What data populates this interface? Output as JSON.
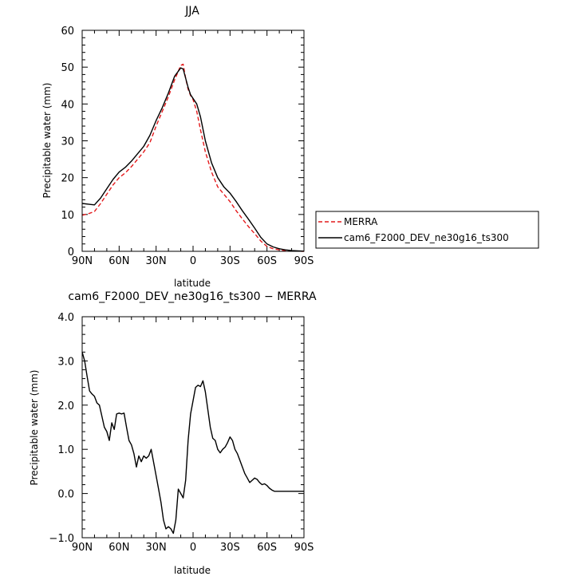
{
  "chart_data": [
    {
      "type": "line",
      "title": "JJA",
      "xlabel": "latitude",
      "ylabel": "Precipitable water (mm)",
      "xlim": [
        90,
        -90
      ],
      "ylim": [
        0,
        60
      ],
      "x_ticks": [
        90,
        60,
        30,
        0,
        -30,
        -60,
        -90
      ],
      "x_tick_labels": [
        "90N",
        "60N",
        "30N",
        "0",
        "30S",
        "60S",
        "90S"
      ],
      "y_ticks": [
        0,
        10,
        20,
        30,
        40,
        50,
        60
      ],
      "y_tick_labels": [
        "0",
        "10",
        "20",
        "30",
        "40",
        "50",
        "60"
      ],
      "grid": false,
      "legend_position": "right",
      "series": [
        {
          "name": "MERRA",
          "color": "#e41a1c",
          "dash": "dashed",
          "x": [
            90,
            85,
            80,
            75,
            70,
            65,
            60,
            55,
            50,
            45,
            40,
            35,
            30,
            25,
            20,
            15,
            10,
            8,
            6,
            4,
            2,
            0,
            -3,
            -6,
            -10,
            -15,
            -20,
            -25,
            -30,
            -35,
            -40,
            -45,
            -50,
            -55,
            -60,
            -65,
            -70,
            -75,
            -80,
            -85,
            -90
          ],
          "y": [
            9.8,
            10.2,
            10.8,
            13,
            15.5,
            18,
            20,
            21.3,
            23,
            25,
            27,
            29.5,
            34,
            38,
            42,
            46.5,
            50.5,
            50.8,
            47,
            44,
            42.3,
            41.2,
            38,
            33,
            27,
            21.5,
            17.5,
            15.5,
            13.5,
            11,
            8.8,
            6.7,
            4.8,
            2.8,
            1.3,
            0.7,
            0.4,
            0.2,
            0.1,
            0.05,
            0
          ]
        },
        {
          "name": "cam6_F2000_DEV_ne30g16_ts300",
          "color": "#000000",
          "dash": "solid",
          "x": [
            90,
            85,
            80,
            75,
            70,
            65,
            60,
            55,
            50,
            45,
            40,
            35,
            30,
            25,
            20,
            15,
            10,
            8,
            6,
            4,
            2,
            0,
            -3,
            -6,
            -10,
            -15,
            -20,
            -25,
            -30,
            -35,
            -40,
            -45,
            -50,
            -55,
            -60,
            -65,
            -70,
            -75,
            -80,
            -85,
            -90
          ],
          "y": [
            13,
            12.8,
            12.6,
            14.5,
            17,
            19.5,
            21.5,
            22.8,
            24.5,
            26.5,
            28.5,
            31.5,
            35.5,
            39,
            43,
            47.5,
            49.8,
            49.5,
            47,
            44.5,
            42.5,
            41.5,
            40,
            36.5,
            30,
            24,
            20,
            17.5,
            15.8,
            13.5,
            11,
            8.7,
            6.3,
            3.8,
            2,
            1.2,
            0.7,
            0.4,
            0.2,
            0.1,
            0.05
          ]
        }
      ]
    },
    {
      "type": "line",
      "title": "cam6_F2000_DEV_ne30g16_ts300 − MERRA",
      "xlabel": "latitude",
      "ylabel": "Precipitable water (mm)",
      "xlim": [
        90,
        -90
      ],
      "ylim": [
        -1.0,
        4.0
      ],
      "x_ticks": [
        90,
        60,
        30,
        0,
        -30,
        -60,
        -90
      ],
      "x_tick_labels": [
        "90N",
        "60N",
        "30N",
        "0",
        "30S",
        "60S",
        "90S"
      ],
      "y_ticks": [
        -1,
        0,
        1,
        2,
        3,
        4
      ],
      "y_tick_labels": [
        "−1.0",
        "0.0",
        "1.0",
        "2.0",
        "3.0",
        "4.0"
      ],
      "grid": false,
      "series": [
        {
          "color": "#000000",
          "dash": "solid",
          "x": [
            90,
            88,
            86,
            84,
            82,
            80,
            78,
            76,
            74,
            72,
            70,
            68,
            66,
            64,
            62,
            60,
            58,
            56,
            54,
            52,
            50,
            48,
            46,
            44,
            42,
            40,
            38,
            36,
            34,
            32,
            30,
            28,
            26,
            24,
            22,
            20,
            18,
            16,
            14,
            12,
            10,
            8,
            6,
            4,
            2,
            0,
            -2,
            -4,
            -6,
            -8,
            -10,
            -12,
            -14,
            -16,
            -18,
            -20,
            -22,
            -24,
            -26,
            -28,
            -30,
            -32,
            -34,
            -36,
            -38,
            -40,
            -42,
            -44,
            -46,
            -48,
            -50,
            -52,
            -54,
            -56,
            -58,
            -60,
            -62,
            -64,
            -66,
            -68,
            -70,
            -72,
            -74,
            -76,
            -78,
            -80,
            -82,
            -84,
            -86,
            -88,
            -90
          ],
          "y": [
            3.2,
            3.0,
            2.65,
            2.32,
            2.25,
            2.2,
            2.05,
            2.0,
            1.75,
            1.5,
            1.4,
            1.2,
            1.6,
            1.45,
            1.8,
            1.82,
            1.8,
            1.82,
            1.5,
            1.2,
            1.1,
            0.9,
            0.6,
            0.85,
            0.72,
            0.85,
            0.8,
            0.85,
            1.0,
            0.7,
            0.4,
            0.1,
            -0.2,
            -0.6,
            -0.8,
            -0.75,
            -0.8,
            -0.9,
            -0.6,
            0.1,
            0.0,
            -0.1,
            0.3,
            1.2,
            1.8,
            2.1,
            2.4,
            2.45,
            2.42,
            2.55,
            2.3,
            1.9,
            1.5,
            1.25,
            1.2,
            1.0,
            0.92,
            1.0,
            1.05,
            1.15,
            1.28,
            1.2,
            1.0,
            0.9,
            0.75,
            0.6,
            0.45,
            0.35,
            0.25,
            0.3,
            0.35,
            0.32,
            0.25,
            0.2,
            0.22,
            0.18,
            0.12,
            0.08,
            0.05,
            0.05,
            0.05,
            0.05,
            0.05,
            0.05,
            0.05,
            0.05,
            0.05,
            0.05,
            0.05,
            0.05,
            0.05
          ]
        }
      ]
    }
  ]
}
